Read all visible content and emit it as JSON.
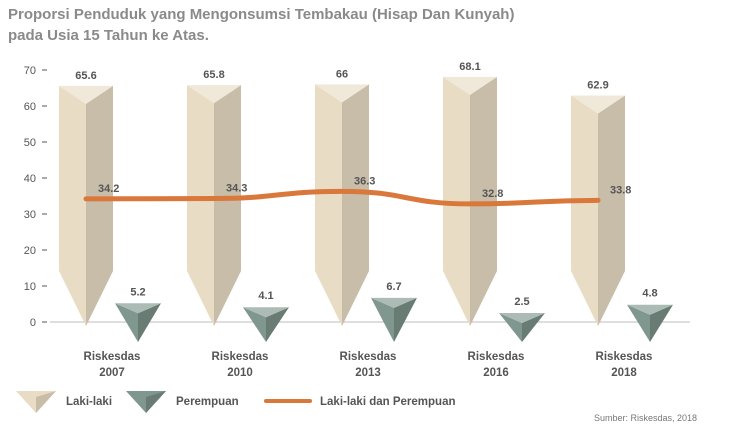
{
  "chart_data": {
    "type": "bar",
    "title_lines": [
      "Proporsi Penduduk yang Mengonsumsi Tembakau (Hisap Dan Kunyah)",
      "pada Usia 15 Tahun ke Atas."
    ],
    "categories": [
      [
        "Riskesdas",
        "2007"
      ],
      [
        "Riskesdas",
        "2010"
      ],
      [
        "Riskesdas",
        "2013"
      ],
      [
        "Riskesdas",
        "2016"
      ],
      [
        "Riskesdas",
        "2018"
      ]
    ],
    "series": [
      {
        "name": "Laki-laki",
        "type": "bar",
        "values": [
          65.6,
          65.8,
          66,
          68.1,
          62.9
        ],
        "color": "#e8dcc4"
      },
      {
        "name": "Perempuan",
        "type": "bar",
        "values": [
          5.2,
          4.1,
          6.7,
          2.5,
          4.8
        ],
        "color": "#7f978e"
      },
      {
        "name": "Laki-laki dan Perempuan",
        "type": "line",
        "values": [
          34.2,
          34.3,
          36.3,
          32.8,
          33.8
        ],
        "color": "#d9783a"
      }
    ],
    "value_labels": {
      "Laki-laki": [
        "65.6",
        "65.8",
        "66",
        "68.1",
        "62.9"
      ],
      "Perempuan": [
        "5.2",
        "4.1",
        "6.7",
        "2.5",
        "4.8"
      ],
      "Laki-laki dan Perempuan": [
        "34.2",
        "34.3",
        "36.3",
        "32.8",
        "33.8"
      ]
    },
    "y_ticks": [
      0,
      10,
      20,
      30,
      40,
      50,
      60,
      70
    ],
    "ylim": [
      0,
      70
    ],
    "grid": false,
    "legend_position": "bottom-left",
    "source": "Sumber: Riskesdas, 2018"
  }
}
